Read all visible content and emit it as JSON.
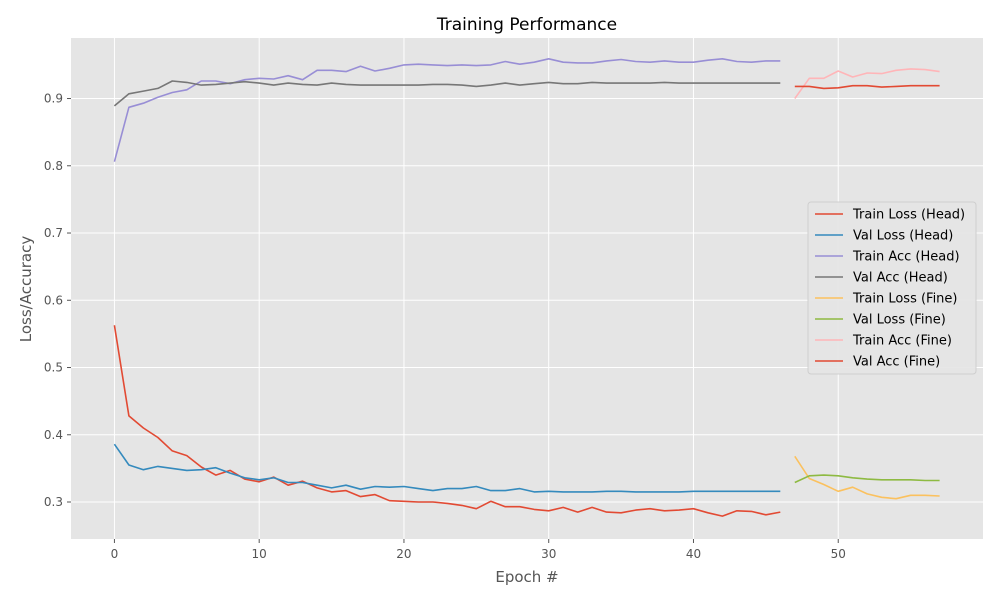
{
  "chart_data": {
    "type": "line",
    "title": "Training Performance",
    "xlabel": "Epoch #",
    "ylabel": "Loss/Accuracy",
    "xlim": [
      -3,
      60
    ],
    "ylim": [
      0.245,
      0.99
    ],
    "xticks": [
      0,
      10,
      20,
      30,
      40,
      50
    ],
    "yticks": [
      0.3,
      0.4,
      0.5,
      0.6,
      0.7,
      0.8,
      0.9
    ],
    "grid": true,
    "legend_position": "center-right",
    "series": [
      {
        "name": "Train Loss (Head)",
        "color": "#E24A33",
        "x_start": 0,
        "values": [
          0.563,
          0.428,
          0.41,
          0.396,
          0.376,
          0.369,
          0.352,
          0.34,
          0.347,
          0.334,
          0.33,
          0.337,
          0.325,
          0.331,
          0.321,
          0.315,
          0.317,
          0.308,
          0.311,
          0.302,
          0.301,
          0.3,
          0.3,
          0.298,
          0.295,
          0.29,
          0.301,
          0.293,
          0.293,
          0.289,
          0.287,
          0.292,
          0.285,
          0.292,
          0.285,
          0.284,
          0.288,
          0.29,
          0.287,
          0.288,
          0.29,
          0.284,
          0.279,
          0.287,
          0.286,
          0.281,
          0.285
        ]
      },
      {
        "name": "Val Loss (Head)",
        "color": "#348ABD",
        "x_start": 0,
        "values": [
          0.386,
          0.355,
          0.348,
          0.353,
          0.35,
          0.347,
          0.348,
          0.351,
          0.343,
          0.336,
          0.333,
          0.336,
          0.329,
          0.329,
          0.325,
          0.321,
          0.325,
          0.319,
          0.323,
          0.322,
          0.323,
          0.32,
          0.317,
          0.32,
          0.32,
          0.323,
          0.317,
          0.317,
          0.32,
          0.315,
          0.316,
          0.315,
          0.315,
          0.315,
          0.316,
          0.316,
          0.315,
          0.315,
          0.315,
          0.315,
          0.316,
          0.316,
          0.316,
          0.316,
          0.316,
          0.316,
          0.316
        ]
      },
      {
        "name": "Train Acc (Head)",
        "color": "#988ED5",
        "x_start": 0,
        "values": [
          0.806,
          0.887,
          0.893,
          0.902,
          0.909,
          0.913,
          0.926,
          0.926,
          0.922,
          0.928,
          0.93,
          0.929,
          0.934,
          0.928,
          0.942,
          0.942,
          0.94,
          0.948,
          0.941,
          0.945,
          0.95,
          0.951,
          0.95,
          0.949,
          0.95,
          0.949,
          0.95,
          0.955,
          0.951,
          0.954,
          0.959,
          0.954,
          0.953,
          0.953,
          0.956,
          0.958,
          0.955,
          0.954,
          0.956,
          0.954,
          0.954,
          0.957,
          0.959,
          0.955,
          0.954,
          0.956,
          0.956
        ]
      },
      {
        "name": "Val Acc (Head)",
        "color": "#777777",
        "x_start": 0,
        "values": [
          0.889,
          0.907,
          0.911,
          0.915,
          0.926,
          0.924,
          0.92,
          0.921,
          0.923,
          0.925,
          0.923,
          0.92,
          0.923,
          0.921,
          0.92,
          0.923,
          0.921,
          0.92,
          0.92,
          0.92,
          0.92,
          0.92,
          0.921,
          0.921,
          0.92,
          0.918,
          0.92,
          0.923,
          0.92,
          0.922,
          0.924,
          0.922,
          0.922,
          0.924,
          0.923,
          0.923,
          0.923,
          0.923,
          0.924,
          0.923,
          0.923,
          0.923,
          0.923,
          0.923,
          0.923,
          0.923,
          0.923
        ]
      },
      {
        "name": "Train Loss (Fine)",
        "color": "#FBC15E",
        "x_start": 47,
        "values": [
          0.368,
          0.335,
          0.326,
          0.316,
          0.322,
          0.312,
          0.307,
          0.305,
          0.31,
          0.31,
          0.309
        ]
      },
      {
        "name": "Val Loss (Fine)",
        "color": "#8EBA42",
        "x_start": 47,
        "values": [
          0.329,
          0.339,
          0.34,
          0.339,
          0.336,
          0.334,
          0.333,
          0.333,
          0.333,
          0.332,
          0.332
        ]
      },
      {
        "name": "Train Acc (Fine)",
        "color": "#FFB5B8",
        "x_start": 47,
        "values": [
          0.9,
          0.93,
          0.93,
          0.941,
          0.932,
          0.938,
          0.937,
          0.942,
          0.944,
          0.943,
          0.94
        ]
      },
      {
        "name": "Val Acc (Fine)",
        "color": "#E24A33",
        "x_start": 47,
        "values": [
          0.918,
          0.918,
          0.915,
          0.916,
          0.919,
          0.919,
          0.917,
          0.918,
          0.919,
          0.919,
          0.919
        ]
      }
    ]
  }
}
